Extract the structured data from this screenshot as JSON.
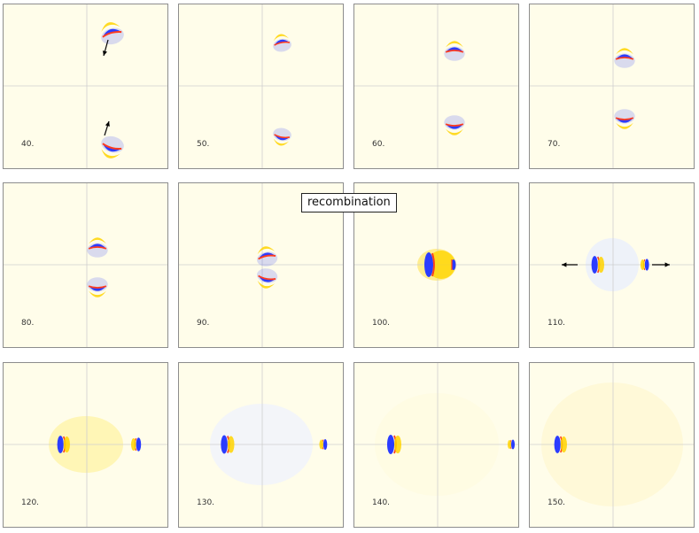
{
  "figure": {
    "callout": "recombination",
    "frames": [
      {
        "label": "40."
      },
      {
        "label": "50."
      },
      {
        "label": "60."
      },
      {
        "label": "70."
      },
      {
        "label": "80."
      },
      {
        "label": "90."
      },
      {
        "label": "100."
      },
      {
        "label": "110."
      },
      {
        "label": "120."
      },
      {
        "label": "130."
      },
      {
        "label": "140."
      },
      {
        "label": "150."
      }
    ],
    "colors": {
      "background": "#fffdea",
      "positive_lobe": "#ffd400",
      "positive_edge": "#ff3c1e",
      "negative_lobe": "#2b3cff",
      "axis_line": "#cfcfcf"
    }
  }
}
